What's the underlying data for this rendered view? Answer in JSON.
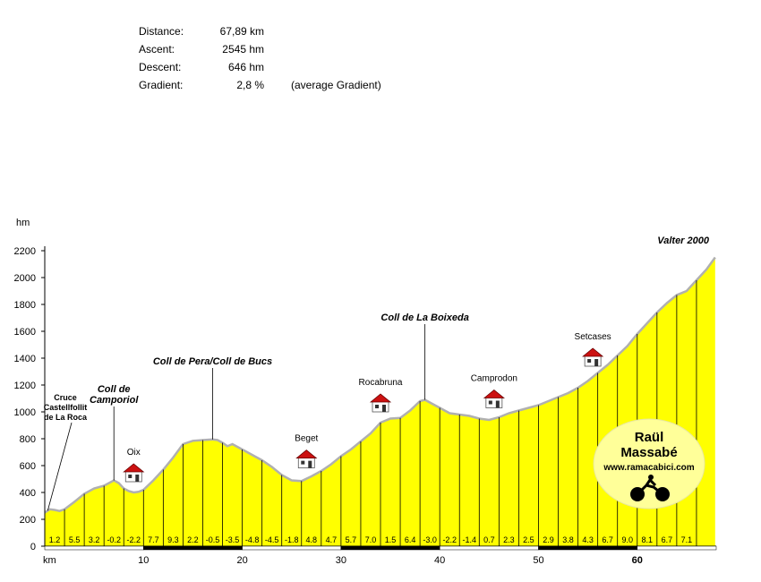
{
  "stats": {
    "distance": {
      "label": "Distance:",
      "value": "67,89 km"
    },
    "ascent": {
      "label": "Ascent:",
      "value": "2545 hm"
    },
    "descent": {
      "label": "Descent:",
      "value": "646 hm"
    },
    "gradient": {
      "label": "Gradient:",
      "value": "2,8 %",
      "note": "(average Gradient)"
    }
  },
  "logo": {
    "line1": "Raül",
    "line2": "Massabé",
    "url": "www.ramacabici.com",
    "icon": "cyclist-icon"
  },
  "colors": {
    "fill": "#ffff00",
    "outline": "#b0b0b0",
    "logo_bg": "#ffff99"
  },
  "chart_data": {
    "type": "area",
    "ylabel": "hm",
    "xlabel": "km",
    "ylim": [
      0,
      2200
    ],
    "xlim": [
      0,
      68
    ],
    "yticks": [
      0,
      200,
      400,
      600,
      800,
      1000,
      1200,
      1400,
      1600,
      1800,
      2000,
      2200
    ],
    "xticks": [
      "10",
      "20",
      "30",
      "40",
      "50",
      "60"
    ],
    "profile": [
      [
        0,
        250
      ],
      [
        0.5,
        275
      ],
      [
        1,
        270
      ],
      [
        1.5,
        262
      ],
      [
        2,
        275
      ],
      [
        3,
        330
      ],
      [
        4,
        390
      ],
      [
        5,
        430
      ],
      [
        6,
        450
      ],
      [
        7,
        490
      ],
      [
        7.5,
        470
      ],
      [
        8,
        430
      ],
      [
        8.5,
        410
      ],
      [
        9,
        400
      ],
      [
        9.5,
        405
      ],
      [
        10,
        420
      ],
      [
        11,
        490
      ],
      [
        12,
        570
      ],
      [
        13,
        660
      ],
      [
        14,
        760
      ],
      [
        15,
        785
      ],
      [
        16,
        790
      ],
      [
        17,
        795
      ],
      [
        17.5,
        790
      ],
      [
        18,
        770
      ],
      [
        18.5,
        745
      ],
      [
        19,
        760
      ],
      [
        20,
        720
      ],
      [
        21,
        680
      ],
      [
        22,
        640
      ],
      [
        23,
        590
      ],
      [
        24,
        530
      ],
      [
        25,
        490
      ],
      [
        26,
        485
      ],
      [
        27,
        520
      ],
      [
        28,
        560
      ],
      [
        29,
        610
      ],
      [
        30,
        670
      ],
      [
        31,
        720
      ],
      [
        32,
        780
      ],
      [
        33,
        840
      ],
      [
        34,
        920
      ],
      [
        35,
        950
      ],
      [
        36,
        955
      ],
      [
        37,
        1010
      ],
      [
        38,
        1080
      ],
      [
        38.5,
        1090
      ],
      [
        39,
        1070
      ],
      [
        40,
        1030
      ],
      [
        41,
        990
      ],
      [
        42,
        980
      ],
      [
        43,
        970
      ],
      [
        44,
        950
      ],
      [
        45,
        940
      ],
      [
        46,
        960
      ],
      [
        47,
        990
      ],
      [
        48,
        1010
      ],
      [
        49,
        1030
      ],
      [
        50,
        1050
      ],
      [
        51,
        1080
      ],
      [
        52,
        1110
      ],
      [
        53,
        1140
      ],
      [
        54,
        1180
      ],
      [
        55,
        1230
      ],
      [
        56,
        1290
      ],
      [
        57,
        1350
      ],
      [
        58,
        1420
      ],
      [
        59,
        1490
      ],
      [
        60,
        1580
      ],
      [
        61,
        1660
      ],
      [
        62,
        1740
      ],
      [
        63,
        1810
      ],
      [
        64,
        1870
      ],
      [
        65,
        1900
      ],
      [
        66,
        1980
      ],
      [
        67,
        2060
      ],
      [
        67.89,
        2150
      ]
    ],
    "segments": [
      "1.2",
      "5.5",
      "3.2",
      "-0.2",
      "-2.2",
      "7.7",
      "9.3",
      "2.2",
      "-0.5",
      "-3.5",
      "-4.8",
      "-4.5",
      "-1.8",
      "4.8",
      "4.7",
      "5.7",
      "7.0",
      "1.5",
      "6.4",
      "-3.0",
      "-2.2",
      "-1.4",
      "0.7",
      "2.3",
      "2.5",
      "2.9",
      "3.8",
      "4.3",
      "6.7",
      "9.0",
      "8.1",
      "6.7",
      "7.1"
    ],
    "annotations": [
      {
        "text": "Cruce Castellfollit de La Roca",
        "lines": [
          "Cruce",
          "Castellfollit",
          "de La Roca"
        ],
        "km": 0.3,
        "type": "junction"
      },
      {
        "text": "Coll de Camporiol",
        "lines": [
          "Coll de",
          "Camporiol"
        ],
        "km": 7,
        "type": "pass"
      },
      {
        "text": "Coll de Pera/Coll de Bucs",
        "lines": [
          "Coll de Pera/Coll de Bucs"
        ],
        "km": 17,
        "type": "pass"
      },
      {
        "text": "Coll de La Boixeda",
        "lines": [
          "Coll de La Boixeda"
        ],
        "km": 38.5,
        "type": "pass"
      },
      {
        "text": "Valter 2000",
        "lines": [
          "Valter 2000"
        ],
        "km": 67.89,
        "type": "summit"
      }
    ],
    "villages": [
      {
        "name": "Oix",
        "km": 9
      },
      {
        "name": "Beget",
        "km": 26.5
      },
      {
        "name": "Rocabruna",
        "km": 34
      },
      {
        "name": "Camprodon",
        "km": 45.5
      },
      {
        "name": "Setcases",
        "km": 55.5
      }
    ]
  }
}
